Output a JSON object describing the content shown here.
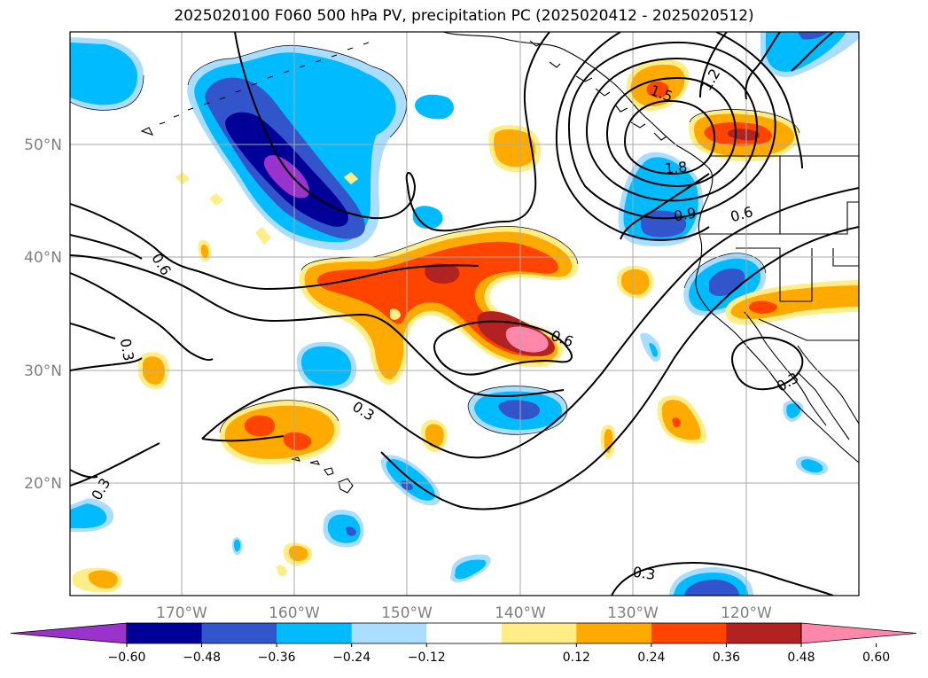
{
  "title": "2025020100 F060 500 hPa PV, precipitation PC (2025020412 - 2025020512)",
  "map": {
    "lon_ticks": [
      "170°W",
      "160°W",
      "150°W",
      "140°W",
      "130°W",
      "120°W"
    ],
    "lat_ticks": [
      "50°N",
      "40°N",
      "30°N",
      "20°N"
    ],
    "grid": true,
    "fill_colors": {
      "neg_060": "#9933cc",
      "neg_048": "#000099",
      "neg_036": "#3355cc",
      "neg_024": "#00bbff",
      "neg_012": "#aaddff",
      "pos_012": "#ffee88",
      "pos_024": "#ffaa00",
      "pos_036": "#ff4400",
      "pos_048": "#b22222",
      "pos_060": "#ff88aa"
    },
    "contour_labels": [
      "0.6",
      "0.3",
      "0.6",
      "0.3",
      "0.6",
      "0.9",
      "1.8",
      "1.5",
      "1.2",
      "0.3",
      "0.3",
      "0.3"
    ]
  },
  "colorbar": {
    "colors": [
      "#9933cc",
      "#000099",
      "#3355cc",
      "#00bbff",
      "#aaddff",
      "#ffffff",
      "#ffee88",
      "#ffaa00",
      "#ff4400",
      "#b22222",
      "#ff88aa"
    ],
    "labels": [
      "−0.60",
      "−0.48",
      "−0.36",
      "−0.24",
      "−0.12",
      "0.12",
      "0.24",
      "0.36",
      "0.48",
      "0.60"
    ]
  }
}
